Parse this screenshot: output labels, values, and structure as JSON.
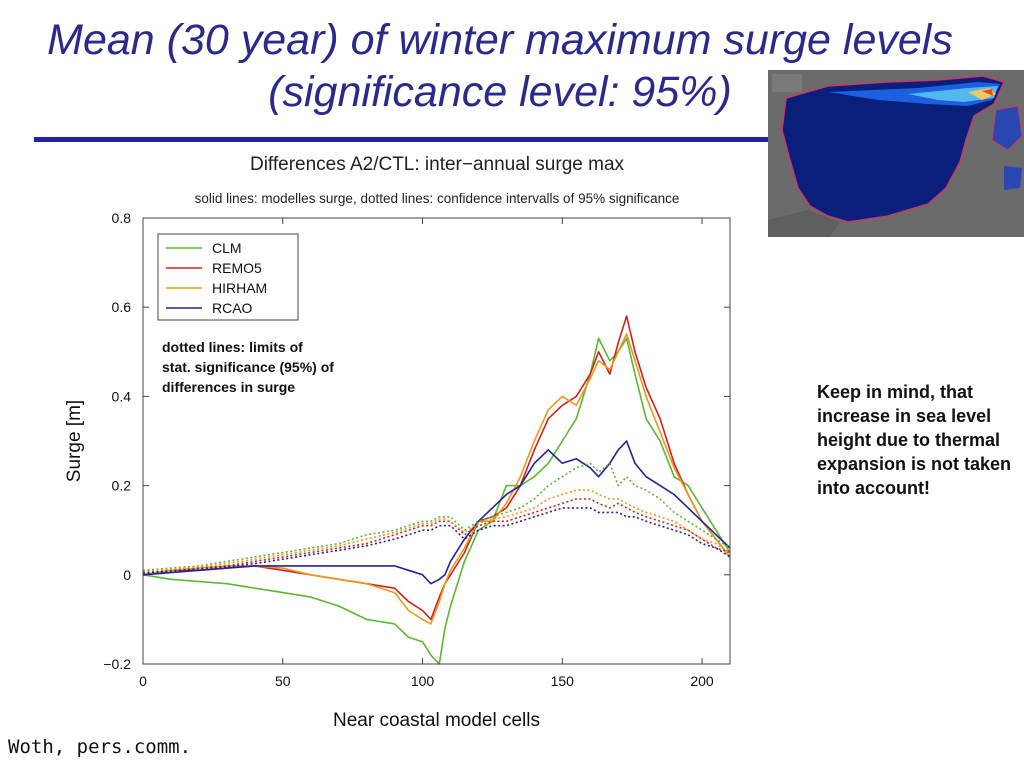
{
  "slide": {
    "title_line1": "Mean (30 year) of winter maximum surge levels",
    "title_line2": "(significance level: 95%)",
    "note": "Keep in mind, that increase in sea level height due to thermal expansion is not taken into account!",
    "author": "Woth, pers.comm."
  },
  "colors": {
    "title": "#2a2a8a",
    "rule": "#2424a0",
    "CLM": "#5cb832",
    "REMO5": "#d42020",
    "HIRHAM": "#e89a1c",
    "RCAO": "#222299"
  },
  "chart_data": {
    "type": "line",
    "title": "Differences A2/CTL: inter−annual surge max",
    "subtitle": "solid lines: modelles surge, dotted lines: confidence intervalls of 95% significance",
    "annotation": "dotted lines: limits of stat. significance (95%) of differences in surge",
    "xlabel": "Near coastal model cells",
    "ylabel": "Surge [m]",
    "xlim": [
      0,
      210
    ],
    "ylim": [
      -0.2,
      0.8
    ],
    "xticks": [
      0,
      50,
      100,
      150,
      200
    ],
    "xtick_labels": [
      "0",
      "50",
      "100",
      "150",
      "200"
    ],
    "yticks": [
      -0.2,
      0,
      0.2,
      0.4,
      0.6,
      0.8
    ],
    "ytick_labels": [
      "−0.2",
      "0",
      "0.2",
      "0.4",
      "0.6",
      "0.8"
    ],
    "legend": [
      "CLM",
      "REMO5",
      "HIRHAM",
      "RCAO"
    ],
    "legend_position": "top-left",
    "x": [
      0,
      10,
      20,
      30,
      40,
      50,
      60,
      70,
      80,
      90,
      95,
      100,
      103,
      106,
      108,
      110,
      115,
      120,
      125,
      130,
      135,
      140,
      145,
      150,
      155,
      160,
      163,
      167,
      170,
      173,
      176,
      180,
      185,
      190,
      195,
      200,
      205,
      210
    ],
    "series": [
      {
        "name": "CLM",
        "style": "solid",
        "values": [
          0.0,
          -0.01,
          -0.015,
          -0.02,
          -0.03,
          -0.04,
          -0.05,
          -0.07,
          -0.1,
          -0.11,
          -0.14,
          -0.15,
          -0.18,
          -0.2,
          -0.12,
          -0.07,
          0.03,
          0.1,
          0.12,
          0.2,
          0.2,
          0.22,
          0.25,
          0.3,
          0.35,
          0.45,
          0.53,
          0.48,
          0.5,
          0.53,
          0.45,
          0.35,
          0.3,
          0.22,
          0.2,
          0.15,
          0.1,
          0.05
        ]
      },
      {
        "name": "REMO5",
        "style": "solid",
        "values": [
          0.0,
          0.01,
          0.01,
          0.015,
          0.02,
          0.01,
          0.0,
          -0.01,
          -0.02,
          -0.03,
          -0.06,
          -0.08,
          -0.1,
          -0.05,
          -0.02,
          0.0,
          0.05,
          0.12,
          0.13,
          0.15,
          0.2,
          0.28,
          0.35,
          0.38,
          0.4,
          0.45,
          0.5,
          0.45,
          0.52,
          0.58,
          0.5,
          0.42,
          0.35,
          0.25,
          0.18,
          0.12,
          0.08,
          0.04
        ]
      },
      {
        "name": "HIRHAM",
        "style": "solid",
        "values": [
          0.0,
          0.01,
          0.015,
          0.02,
          0.02,
          0.015,
          0.0,
          -0.01,
          -0.02,
          -0.04,
          -0.08,
          -0.1,
          -0.11,
          -0.06,
          -0.02,
          0.01,
          0.06,
          0.12,
          0.12,
          0.16,
          0.22,
          0.3,
          0.37,
          0.4,
          0.38,
          0.44,
          0.48,
          0.46,
          0.5,
          0.54,
          0.48,
          0.4,
          0.32,
          0.24,
          0.18,
          0.12,
          0.08,
          0.04
        ]
      },
      {
        "name": "RCAO",
        "style": "solid",
        "values": [
          0.0,
          0.005,
          0.01,
          0.015,
          0.02,
          0.02,
          0.02,
          0.02,
          0.02,
          0.02,
          0.01,
          0.0,
          -0.02,
          -0.01,
          0.0,
          0.03,
          0.08,
          0.12,
          0.15,
          0.18,
          0.2,
          0.25,
          0.28,
          0.25,
          0.26,
          0.24,
          0.22,
          0.25,
          0.28,
          0.3,
          0.25,
          0.22,
          0.2,
          0.18,
          0.15,
          0.12,
          0.09,
          0.06
        ]
      },
      {
        "name": "CLM",
        "style": "dotted",
        "values": [
          0.01,
          0.015,
          0.02,
          0.03,
          0.04,
          0.05,
          0.06,
          0.07,
          0.09,
          0.1,
          0.11,
          0.12,
          0.12,
          0.13,
          0.13,
          0.13,
          0.1,
          0.12,
          0.13,
          0.14,
          0.15,
          0.17,
          0.2,
          0.22,
          0.24,
          0.25,
          0.23,
          0.25,
          0.2,
          0.22,
          0.2,
          0.19,
          0.17,
          0.14,
          0.12,
          0.1,
          0.08,
          0.06
        ]
      },
      {
        "name": "REMO5",
        "style": "dotted",
        "values": [
          0.005,
          0.01,
          0.015,
          0.02,
          0.03,
          0.04,
          0.05,
          0.06,
          0.07,
          0.09,
          0.1,
          0.11,
          0.11,
          0.12,
          0.12,
          0.12,
          0.09,
          0.11,
          0.12,
          0.12,
          0.13,
          0.14,
          0.15,
          0.16,
          0.17,
          0.17,
          0.16,
          0.15,
          0.16,
          0.15,
          0.14,
          0.13,
          0.12,
          0.11,
          0.1,
          0.08,
          0.06,
          0.05
        ]
      },
      {
        "name": "HIRHAM",
        "style": "dotted",
        "values": [
          0.008,
          0.012,
          0.018,
          0.025,
          0.035,
          0.045,
          0.055,
          0.065,
          0.08,
          0.095,
          0.105,
          0.115,
          0.115,
          0.125,
          0.125,
          0.12,
          0.095,
          0.115,
          0.125,
          0.13,
          0.14,
          0.15,
          0.17,
          0.18,
          0.19,
          0.19,
          0.18,
          0.17,
          0.17,
          0.16,
          0.15,
          0.14,
          0.13,
          0.12,
          0.1,
          0.08,
          0.07,
          0.05
        ]
      },
      {
        "name": "RCAO",
        "style": "dotted",
        "values": [
          0.004,
          0.008,
          0.012,
          0.018,
          0.025,
          0.035,
          0.045,
          0.055,
          0.065,
          0.08,
          0.09,
          0.1,
          0.1,
          0.11,
          0.11,
          0.11,
          0.08,
          0.1,
          0.11,
          0.11,
          0.12,
          0.13,
          0.14,
          0.15,
          0.15,
          0.15,
          0.14,
          0.14,
          0.14,
          0.13,
          0.13,
          0.12,
          0.11,
          0.1,
          0.09,
          0.07,
          0.06,
          0.04
        ]
      }
    ]
  }
}
